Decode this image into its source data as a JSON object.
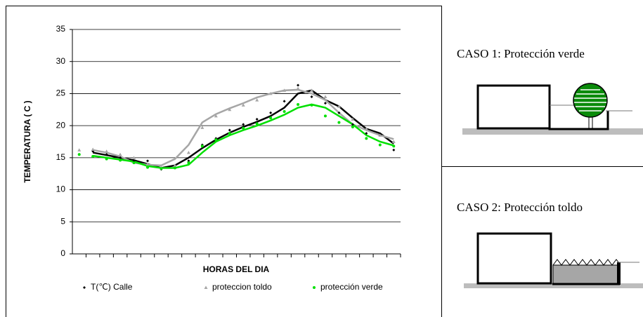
{
  "chart_data": {
    "type": "line",
    "ylabel": "TEMPERATURA ( C )",
    "xlabel": "HORAS DEL DIA",
    "categories": [
      null,
      null,
      null,
      null,
      null,
      null,
      null,
      null,
      null,
      null,
      null,
      null,
      null,
      null,
      null,
      null,
      null,
      null,
      null,
      null,
      null,
      null,
      null,
      null
    ],
    "ylim": [
      0,
      35
    ],
    "yticks": [
      0,
      5,
      10,
      15,
      20,
      25,
      30,
      35
    ],
    "grid": true,
    "legend": "bottom",
    "series": [
      {
        "name": "T(℃) Calle",
        "color": "#000000",
        "marker": "diamond",
        "values": [
          15.5,
          16,
          15.5,
          15,
          14.5,
          14.5,
          13.2,
          13.5,
          14.5,
          17,
          18,
          19.3,
          20.2,
          21,
          22,
          23.8,
          26.3,
          24.5,
          23.5,
          22,
          20.2,
          18.8,
          18.5,
          16.2
        ],
        "trend": [
          null,
          15.8,
          15.4,
          15,
          14.6,
          14,
          13.4,
          13.8,
          15,
          16.5,
          17.8,
          18.9,
          19.8,
          20.6,
          21.5,
          22.8,
          25,
          25.5,
          24,
          23,
          21.2,
          19.5,
          18.8,
          17.2
        ]
      },
      {
        "name": "proteccion toldo",
        "color": "#a6a6a6",
        "marker": "triangle",
        "values": [
          16.2,
          16.3,
          16,
          15.5,
          15,
          14,
          13.5,
          13.8,
          15.8,
          19.7,
          21.5,
          22.5,
          23.2,
          24,
          25,
          25.5,
          25.8,
          25.5,
          24.5,
          23,
          21,
          19.5,
          18.5,
          17.5
        ],
        "trend": [
          null,
          16.2,
          15.8,
          15.2,
          14.2,
          13.9,
          13.8,
          14.8,
          17,
          20.5,
          21.8,
          22.7,
          23.5,
          24.4,
          25,
          25.5,
          25.6,
          25,
          24,
          22,
          20.2,
          19.3,
          18.5,
          17.9
        ]
      },
      {
        "name": "protección verde",
        "color": "#00e000",
        "marker": "circle",
        "values": [
          15.5,
          15.2,
          14.8,
          14.6,
          14.2,
          13.5,
          13.3,
          13.4,
          14.2,
          16.8,
          17.8,
          18.8,
          19.6,
          20.3,
          21.2,
          22.2,
          23.3,
          23.2,
          21.5,
          20.5,
          19.8,
          18,
          17,
          16.8
        ],
        "trend": [
          null,
          15.3,
          15,
          14.7,
          14.4,
          13.7,
          13.4,
          13.4,
          13.9,
          15.8,
          17.5,
          18.5,
          19.3,
          20,
          20.8,
          21.7,
          22.8,
          23.3,
          22.8,
          21.5,
          20.2,
          18.5,
          17.5,
          16.9
        ]
      }
    ]
  },
  "panels": [
    {
      "title": "CASO 1: Protección verde"
    },
    {
      "title": "CASO 2: Protección toldo"
    }
  ]
}
